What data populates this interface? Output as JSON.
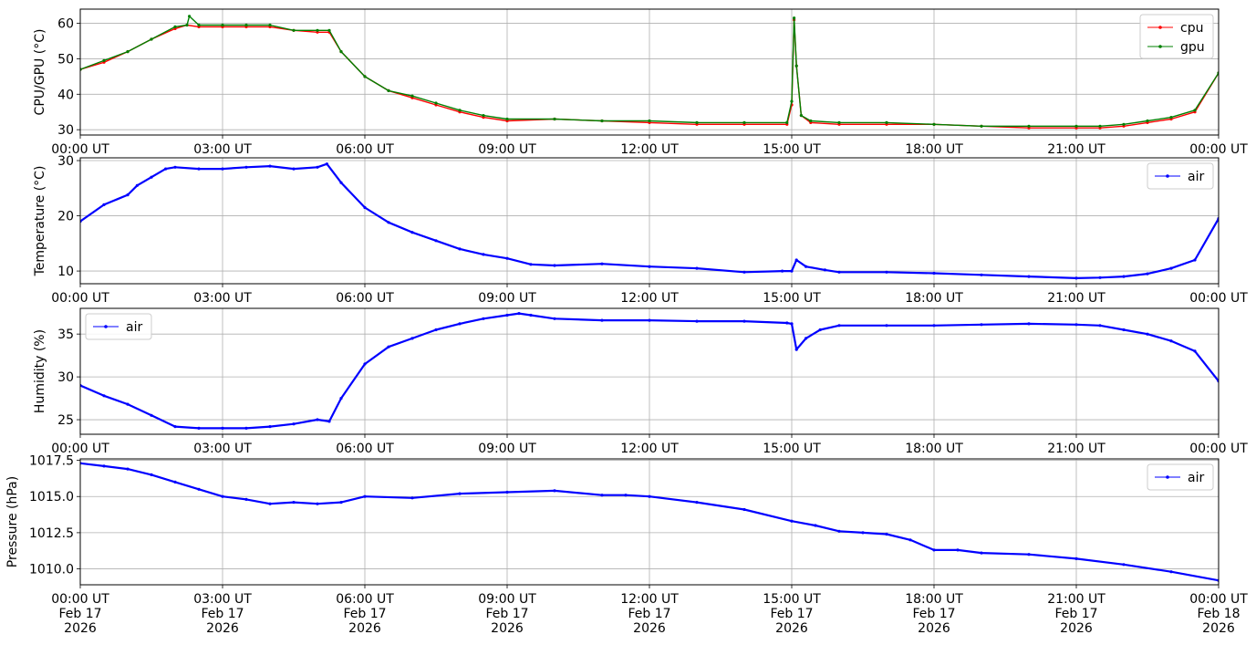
{
  "chart_data": [
    {
      "type": "line",
      "ylabel": "CPU/GPU (°C)",
      "ylim": [
        28.5,
        64
      ],
      "yticks": [
        30,
        40,
        50,
        60
      ],
      "grid": true,
      "legend_placement": "top-right",
      "x_unit": "hours from 00:00 UT Feb 17 2026",
      "x_ticks": [
        "00:00 UT",
        "03:00 UT",
        "06:00 UT",
        "09:00 UT",
        "12:00 UT",
        "15:00 UT",
        "18:00 UT",
        "21:00 UT",
        "00:00 UT"
      ],
      "series": [
        {
          "name": "cpu",
          "color": "#ff0000",
          "x": [
            0,
            0.5,
            1,
            1.5,
            2,
            2.25,
            2.5,
            3,
            3.5,
            4,
            4.5,
            5,
            5.25,
            5.5,
            6,
            6.5,
            7,
            7.5,
            8,
            8.5,
            9,
            10,
            11,
            12,
            13,
            14,
            14.9,
            15.0,
            15.05,
            15.1,
            15.2,
            15.4,
            16,
            17,
            18,
            19,
            20,
            21,
            21.5,
            22,
            22.5,
            23,
            23.5,
            24
          ],
          "y": [
            47,
            49,
            52,
            55.5,
            58.5,
            59.5,
            59,
            59,
            59,
            59,
            58,
            57.5,
            57.5,
            52,
            45,
            41,
            39,
            37,
            35,
            33.5,
            32.5,
            33,
            32.5,
            32,
            31.5,
            31.5,
            31.5,
            37,
            61,
            48,
            34,
            32,
            31.5,
            31.5,
            31.5,
            31,
            30.5,
            30.5,
            30.5,
            31,
            32,
            33,
            35,
            46
          ]
        },
        {
          "name": "gpu",
          "color": "#008000",
          "x": [
            0,
            0.5,
            1,
            1.5,
            2,
            2.25,
            2.3,
            2.5,
            3,
            3.5,
            4,
            4.5,
            5,
            5.25,
            5.5,
            6,
            6.5,
            7,
            7.5,
            8,
            8.5,
            9,
            10,
            11,
            12,
            13,
            14,
            14.9,
            15.0,
            15.05,
            15.1,
            15.2,
            15.4,
            16,
            17,
            18,
            19,
            20,
            21,
            21.5,
            22,
            22.5,
            23,
            23.5,
            24
          ],
          "y": [
            47,
            49.5,
            52,
            55.5,
            59,
            59.5,
            62,
            59.5,
            59.5,
            59.5,
            59.5,
            58,
            58,
            58,
            52,
            45,
            41,
            39.5,
            37.5,
            35.5,
            34,
            33,
            33,
            32.5,
            32.5,
            32,
            32,
            32,
            38,
            61.5,
            48,
            34,
            32.5,
            32,
            32,
            31.5,
            31,
            31,
            31,
            31,
            31.5,
            32.5,
            33.5,
            35.5,
            46
          ]
        }
      ]
    },
    {
      "type": "line",
      "ylabel": "Temperature (°C)",
      "ylim": [
        7.7,
        30.5
      ],
      "yticks": [
        10,
        20,
        30
      ],
      "grid": true,
      "legend_placement": "top-right",
      "x_unit": "hours from 00:00 UT Feb 17 2026",
      "x_ticks": [
        "00:00 UT",
        "03:00 UT",
        "06:00 UT",
        "09:00 UT",
        "12:00 UT",
        "15:00 UT",
        "18:00 UT",
        "21:00 UT",
        "00:00 UT"
      ],
      "series": [
        {
          "name": "air",
          "color": "#0000ff",
          "x": [
            0,
            0.5,
            1,
            1.2,
            1.5,
            1.8,
            2,
            2.5,
            3,
            3.5,
            4,
            4.5,
            5,
            5.2,
            5.5,
            6,
            6.5,
            7,
            7.5,
            8,
            8.5,
            9,
            9.5,
            10,
            11,
            12,
            13,
            14,
            14.8,
            15.0,
            15.1,
            15.3,
            15.7,
            16,
            17,
            18,
            19,
            20,
            21,
            21.5,
            22,
            22.5,
            23,
            23.5,
            24
          ],
          "y": [
            19,
            22,
            23.8,
            25.5,
            27,
            28.5,
            28.8,
            28.5,
            28.5,
            28.8,
            29,
            28.5,
            28.8,
            29.4,
            26,
            21.5,
            18.8,
            17,
            15.5,
            14,
            13,
            12.3,
            11.2,
            11,
            11.3,
            10.8,
            10.5,
            9.8,
            10,
            10,
            12,
            10.8,
            10.2,
            9.8,
            9.8,
            9.6,
            9.3,
            9,
            8.7,
            8.8,
            9,
            9.5,
            10.5,
            12,
            19.5
          ]
        }
      ]
    },
    {
      "type": "line",
      "ylabel": "Humidity (%)",
      "ylim": [
        23.3,
        38
      ],
      "yticks": [
        25,
        30,
        35
      ],
      "grid": true,
      "legend_placement": "top-left",
      "x_unit": "hours from 00:00 UT Feb 17 2026",
      "x_ticks": [
        "00:00 UT",
        "03:00 UT",
        "06:00 UT",
        "09:00 UT",
        "12:00 UT",
        "15:00 UT",
        "18:00 UT",
        "21:00 UT",
        "00:00 UT"
      ],
      "series": [
        {
          "name": "air",
          "color": "#0000ff",
          "x": [
            0,
            0.5,
            1,
            1.5,
            2,
            2.5,
            3,
            3.5,
            4,
            4.5,
            5,
            5.25,
            5.5,
            6,
            6.5,
            7,
            7.5,
            8,
            8.5,
            9,
            9.25,
            9.5,
            10,
            11,
            12,
            13,
            14,
            14.9,
            15.0,
            15.1,
            15.3,
            15.6,
            16,
            17,
            18,
            19,
            20,
            21,
            21.5,
            22,
            22.5,
            23,
            23.5,
            24
          ],
          "y": [
            29,
            27.8,
            26.8,
            25.5,
            24.2,
            24,
            24,
            24,
            24.2,
            24.5,
            25,
            24.8,
            27.5,
            31.5,
            33.5,
            34.5,
            35.5,
            36.2,
            36.8,
            37.2,
            37.4,
            37.2,
            36.8,
            36.6,
            36.6,
            36.5,
            36.5,
            36.3,
            36.2,
            33.2,
            34.5,
            35.5,
            36,
            36,
            36,
            36.1,
            36.2,
            36.1,
            36,
            35.5,
            35,
            34.2,
            33,
            29.5
          ]
        }
      ]
    },
    {
      "type": "line",
      "ylabel": "Pressure (hPa)",
      "ylim": [
        1008.9,
        1017.6
      ],
      "yticks": [
        1010.0,
        1012.5,
        1015.0,
        1017.5
      ],
      "ytick_labels": [
        "1010.0",
        "1012.5",
        "1015.0",
        "1017.5"
      ],
      "grid": true,
      "legend_placement": "top-right",
      "x_unit": "hours from 00:00 UT Feb 17 2026",
      "x_ticks": [
        "00:00 UT\nFeb 17\n2026",
        "03:00 UT\nFeb 17\n2026",
        "06:00 UT\nFeb 17\n2026",
        "09:00 UT\nFeb 17\n2026",
        "12:00 UT\nFeb 17\n2026",
        "15:00 UT\nFeb 17\n2026",
        "18:00 UT\nFeb 17\n2026",
        "21:00 UT\nFeb 17\n2026",
        "00:00 UT\nFeb 18\n2026"
      ],
      "series": [
        {
          "name": "air",
          "color": "#0000ff",
          "x": [
            0,
            0.5,
            1,
            1.5,
            2,
            2.5,
            3,
            3.5,
            4,
            4.5,
            5,
            5.5,
            6,
            7,
            8,
            9,
            10,
            11,
            11.5,
            12,
            13,
            14,
            15,
            15.5,
            16,
            16.5,
            17,
            17.5,
            18,
            18.5,
            19,
            20,
            21,
            22,
            23,
            24
          ],
          "y": [
            1017.3,
            1017.1,
            1016.9,
            1016.5,
            1016,
            1015.5,
            1015,
            1014.8,
            1014.5,
            1014.6,
            1014.5,
            1014.6,
            1015,
            1014.9,
            1015.2,
            1015.3,
            1015.4,
            1015.1,
            1015.1,
            1015,
            1014.6,
            1014.1,
            1013.3,
            1013,
            1012.6,
            1012.5,
            1012.4,
            1012,
            1011.3,
            1011.3,
            1011.1,
            1011,
            1010.7,
            1010.3,
            1009.8,
            1009.2
          ]
        }
      ]
    }
  ]
}
